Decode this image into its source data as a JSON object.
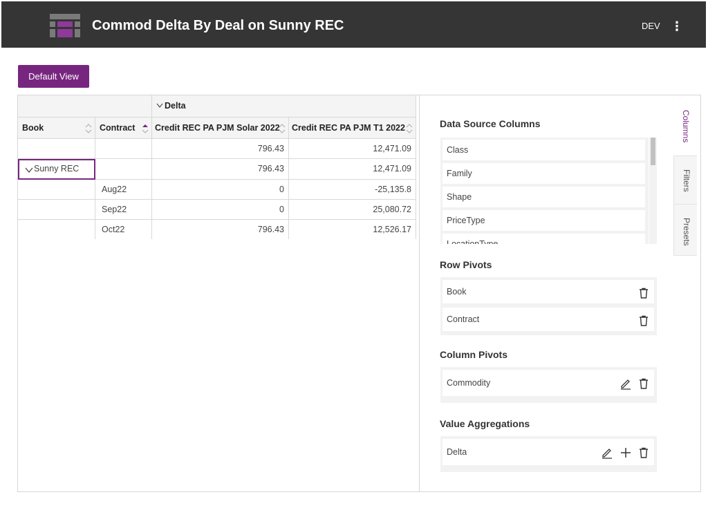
{
  "titlebar": {
    "title": "Commod Delta By Deal on Sunny REC",
    "env": "DEV",
    "more_glyph": "⋮"
  },
  "toolbar": {
    "default_view_label": "Default View"
  },
  "grid": {
    "group_header": "Delta",
    "columns": [
      "Book",
      "Contract",
      "Credit REC PA PJM Solar 2022",
      "Credit REC PA PJM T1 2022"
    ],
    "rows": [
      {
        "book": "",
        "contract": "",
        "solar": "796.43",
        "t1": "12,471.09"
      },
      {
        "book": "Sunny REC",
        "contract": "",
        "solar": "796.43",
        "t1": "12,471.09"
      },
      {
        "book": "",
        "contract": "Aug22",
        "solar": "0",
        "t1": "-25,135.8"
      },
      {
        "book": "",
        "contract": "Sep22",
        "solar": "0",
        "t1": "25,080.72"
      },
      {
        "book": "",
        "contract": "Oct22",
        "solar": "796.43",
        "t1": "12,526.17"
      }
    ]
  },
  "panel": {
    "data_source_title": "Data Source Columns",
    "data_source_items": [
      "Class",
      "Family",
      "Shape",
      "PriceType",
      "LocationType"
    ],
    "row_pivots_title": "Row Pivots",
    "row_pivots": [
      "Book",
      "Contract"
    ],
    "column_pivots_title": "Column Pivots",
    "column_pivots": [
      "Commodity"
    ],
    "value_agg_title": "Value Aggregations",
    "value_aggs": [
      "Delta"
    ]
  },
  "side_tabs": [
    "Columns",
    "Filters",
    "Presets"
  ],
  "colors": {
    "accent": "#77267f",
    "titlebar": "#353535"
  },
  "icons": [
    "logo-icon",
    "more-vert-icon",
    "sort-icon",
    "chevron-down-icon",
    "trash-icon",
    "edit-icon",
    "plus-icon"
  ]
}
